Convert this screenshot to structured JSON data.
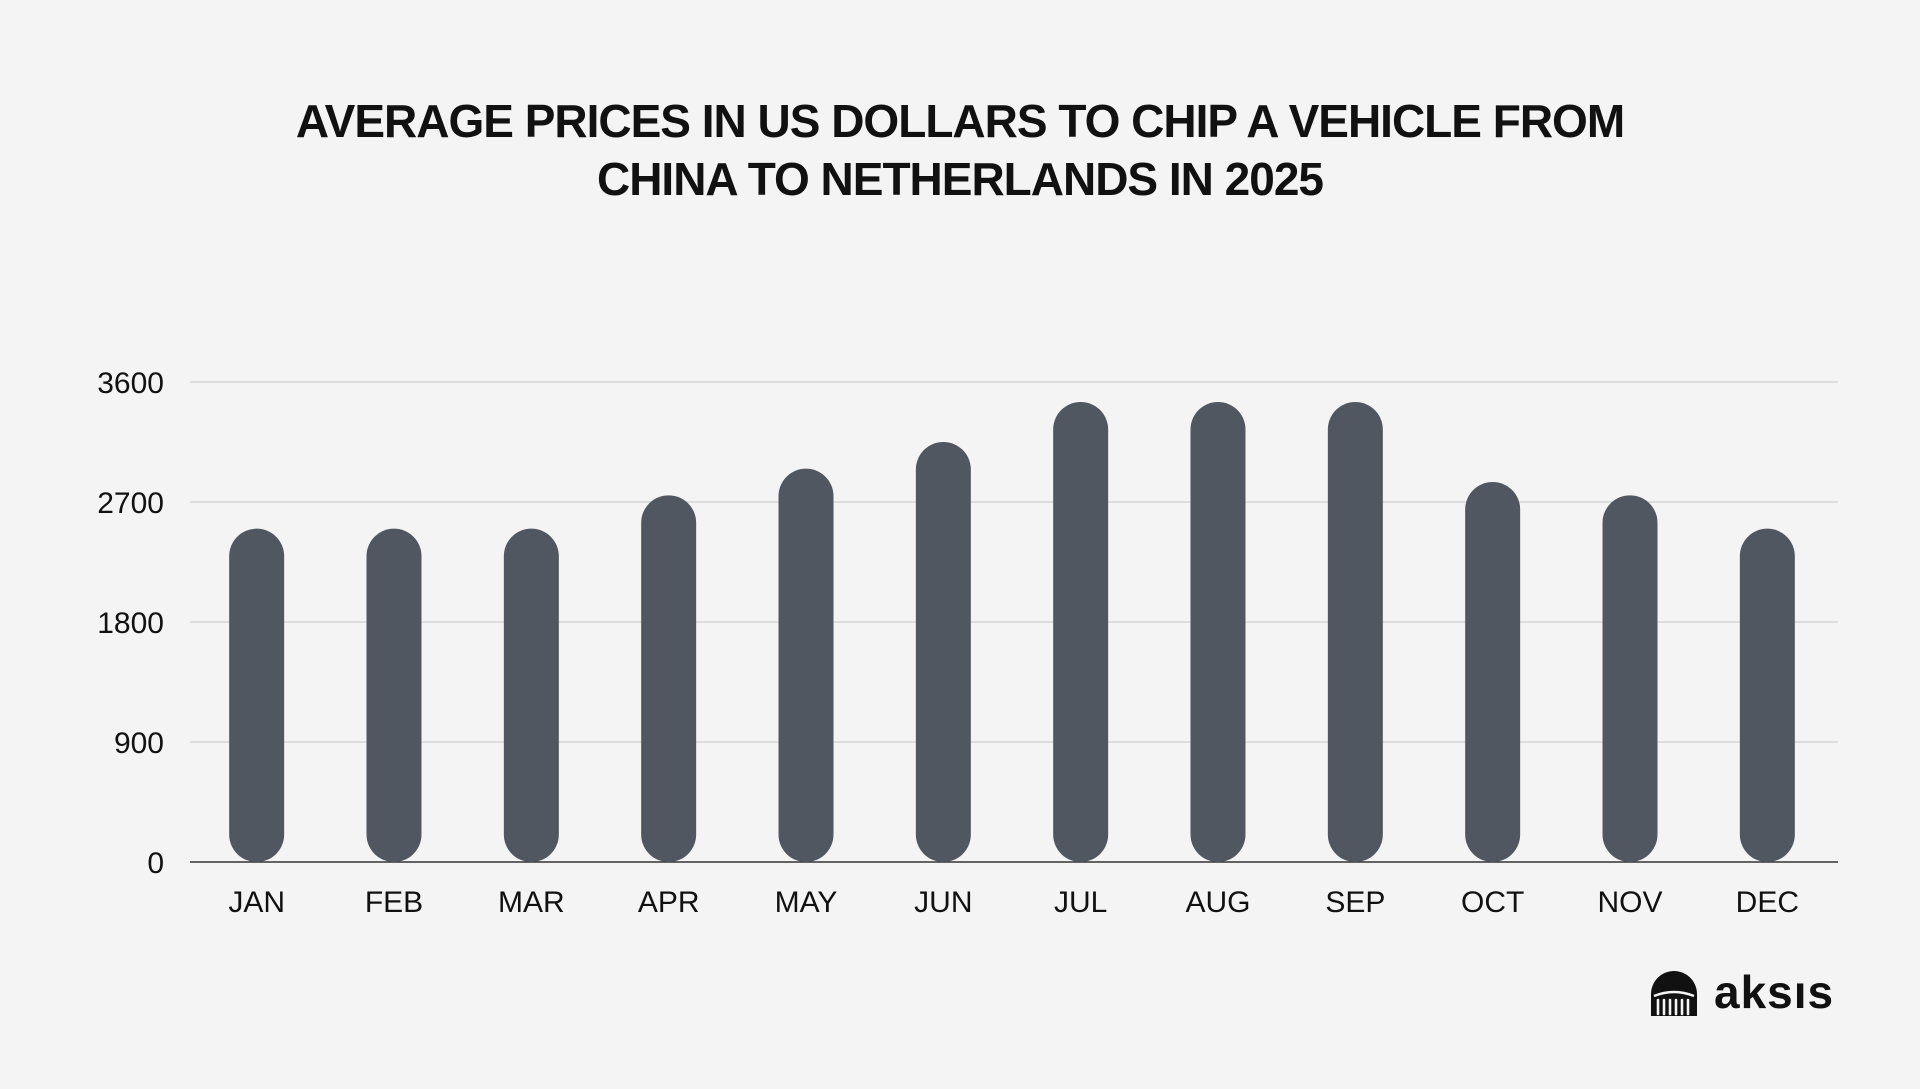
{
  "chart_data": {
    "type": "bar",
    "title_lines": [
      "AVERAGE PRICES IN US DOLLARS TO CHIP A VEHICLE FROM",
      "CHINA TO NETHERLANDS IN 2025"
    ],
    "categories": [
      "JAN",
      "FEB",
      "MAR",
      "APR",
      "MAY",
      "JUN",
      "JUL",
      "AUG",
      "SEP",
      "OCT",
      "NOV",
      "DEC"
    ],
    "values": [
      2500,
      2500,
      2500,
      2750,
      2950,
      3150,
      3450,
      3450,
      3450,
      2850,
      2750,
      2500
    ],
    "y_ticks": [
      "0",
      "900",
      "1800",
      "2700",
      "3600"
    ],
    "ylim": [
      0,
      3600
    ],
    "grid": true,
    "legend": "none",
    "xlabel": "",
    "ylabel": "",
    "colors": {
      "bar": "#505760",
      "grid": "#cfcfcf",
      "axis": "#333333",
      "background": "#f4f4f4",
      "text": "#111111"
    }
  },
  "logo": {
    "text": "aksıs",
    "icon": "aksis-logo-icon"
  }
}
